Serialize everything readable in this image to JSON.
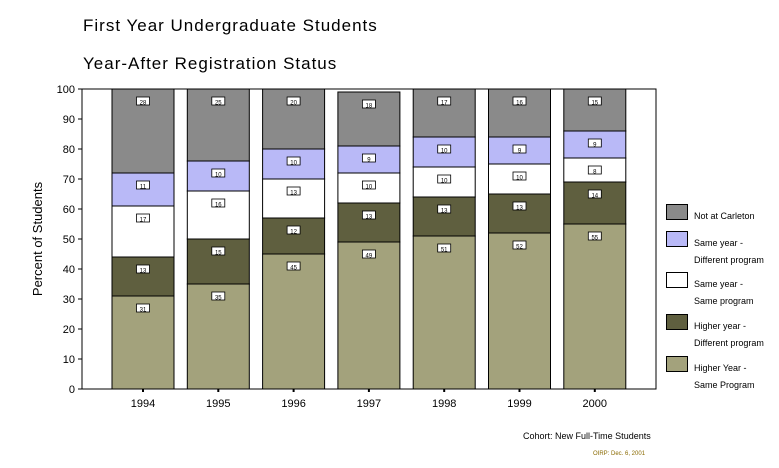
{
  "chart_data": {
    "type": "bar",
    "stacked": true,
    "title": "First Year Undergraduate Students",
    "subtitle": "Year-After Registration Status",
    "ylabel": "Percent of Students",
    "xlabel": "",
    "ylim": [
      0,
      100
    ],
    "yticks": [
      "0",
      "10",
      "20",
      "30",
      "40",
      "50",
      "60",
      "70",
      "80",
      "90",
      "100"
    ],
    "categories": [
      "1994",
      "1995",
      "1996",
      "1997",
      "1998",
      "1999",
      "2000"
    ],
    "series": [
      {
        "name_line1": "Higher Year -",
        "name_line2": "Same Program",
        "color": "#a3a27c",
        "values": [
          31,
          35,
          45,
          49,
          51,
          52,
          55
        ],
        "labels": [
          "31",
          "35",
          "45",
          "49",
          "51",
          "52",
          "55"
        ]
      },
      {
        "name_line1": "Higher year -",
        "name_line2": "Different program",
        "color": "#5f5f3f",
        "values": [
          13,
          15,
          12,
          13,
          13,
          13,
          14
        ],
        "labels": [
          "13",
          "15",
          "12",
          "13",
          "13",
          "13",
          "14"
        ]
      },
      {
        "name_line1": "Same year  -",
        "name_line2": "Same program",
        "color": "#ffffff",
        "values": [
          17,
          16,
          13,
          10,
          10,
          10,
          8
        ],
        "labels": [
          "17",
          "16",
          "13",
          "10",
          "10",
          "10",
          "8"
        ]
      },
      {
        "name_line1": "Same year  -",
        "name_line2": "Different program",
        "color": "#b9b9f7",
        "values": [
          11,
          10,
          10,
          9,
          10,
          9,
          9
        ],
        "labels": [
          "11",
          "10",
          "10",
          "9",
          "10",
          "9",
          "9"
        ]
      },
      {
        "name_line1": "Not at Carleton",
        "name_line2": "",
        "color": "#8a8a8a",
        "values": [
          28,
          25,
          20,
          18,
          17,
          16,
          15
        ],
        "labels": [
          "28",
          "25",
          "20",
          "18",
          "17",
          "16",
          "15"
        ]
      }
    ],
    "legend_position": "right",
    "grid": false
  },
  "notes": {
    "cohort": "Cohort: New Full-Time Students",
    "oirp": "OIRP: Dec. 6, 2001"
  }
}
